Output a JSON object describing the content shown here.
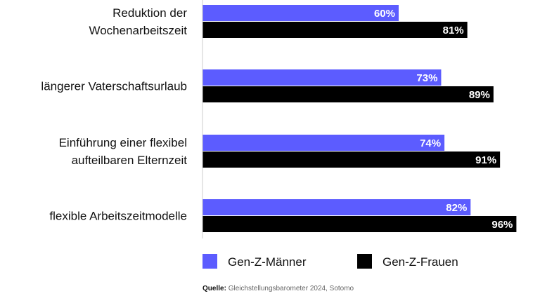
{
  "chart_data": {
    "type": "bar",
    "orientation": "horizontal",
    "categories": [
      [
        "Reduktion der",
        "Wochenarbeitszeit"
      ],
      [
        "längerer Vaterschaftsurlaub"
      ],
      [
        "Einführung einer flexibel",
        "aufteilbaren Elternzeit"
      ],
      [
        "flexible Arbeitszeitmodelle"
      ]
    ],
    "series": [
      {
        "name": "Gen-Z-Männer",
        "color": "#5c5cff",
        "values": [
          60,
          73,
          74,
          82
        ],
        "labels": [
          "60%",
          "73%",
          "74%",
          "82%"
        ]
      },
      {
        "name": "Gen-Z-Frauen",
        "color": "#000000",
        "values": [
          81,
          89,
          91,
          96
        ],
        "labels": [
          "81%",
          "89%",
          "91%",
          "96%"
        ]
      }
    ],
    "xlim": [
      0,
      100
    ],
    "grid": false,
    "legend": "bottom"
  },
  "source": {
    "label": "Quelle:",
    "text": "Gleichstellungsbarometer 2024, Sotomo"
  }
}
